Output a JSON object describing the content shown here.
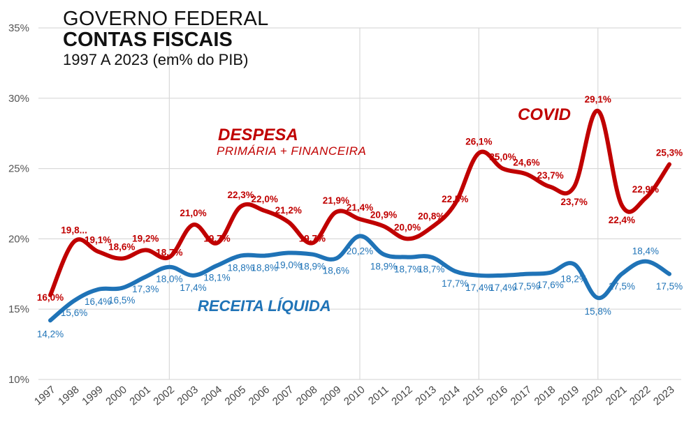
{
  "title": {
    "line1": "GOVERNO FEDERAL",
    "line2": "CONTAS FISCAIS",
    "line3": "1997 A 2023 (em% do PIB)"
  },
  "annotations": {
    "despesa_title": "DESPESA",
    "despesa_sub": "PRIMÁRIA + FINANCEIRA",
    "receita": "RECEITA LÍQUIDA",
    "covid": "COVID"
  },
  "colors": {
    "despesa": "#c00000",
    "receita": "#1f73b7",
    "grid": "#d9d9d9",
    "axis_text": "#555555"
  },
  "chart_data": {
    "type": "line",
    "title": "GOVERNO FEDERAL CONTAS FISCAIS 1997 A 2023 (em% do PIB)",
    "xlabel": "",
    "ylabel": "",
    "ylim": [
      10,
      35
    ],
    "yticks": [
      10,
      15,
      20,
      25,
      30,
      35
    ],
    "ytick_labels": [
      "10%",
      "15%",
      "20%",
      "25%",
      "30%",
      "35%"
    ],
    "vertical_gridlines_at": [
      "2002",
      "2010",
      "2015",
      "2020"
    ],
    "categories": [
      "1997",
      "1998",
      "1999",
      "2000",
      "2001",
      "2002",
      "2003",
      "2004",
      "2005",
      "2006",
      "2007",
      "2008",
      "2009",
      "2010",
      "2011",
      "2012",
      "2013",
      "2014",
      "2015",
      "2016",
      "2017",
      "2018",
      "2019",
      "2020",
      "2021",
      "2022",
      "2023"
    ],
    "series": [
      {
        "name": "DESPESA PRIMÁRIA + FINANCEIRA",
        "values": [
          16.0,
          19.8,
          19.1,
          18.6,
          19.2,
          18.7,
          21.0,
          19.7,
          22.3,
          22.0,
          21.2,
          19.7,
          21.9,
          21.4,
          20.9,
          20.0,
          20.8,
          22.5,
          26.1,
          25.0,
          24.6,
          23.7,
          23.7,
          29.1,
          22.4,
          22.9,
          25.3
        ],
        "labels": [
          "16,0%",
          "19,8...",
          "19,1%",
          "18,6%",
          "19,2%",
          "18,7%",
          "21,0%",
          "19,7%",
          "22,3%",
          "22,0%",
          "21,2%",
          "19,7%",
          "21,9%",
          "21,4%",
          "20,9%",
          "20,0%",
          "20,8%",
          "22,5%",
          "26,1%",
          "25,0%",
          "24,6%",
          "23,7%",
          "23,7%",
          "29,1%",
          "22,4%",
          "22,9%",
          "25,3%"
        ]
      },
      {
        "name": "RECEITA LÍQUIDA",
        "values": [
          14.2,
          15.6,
          16.4,
          16.5,
          17.3,
          18.0,
          17.4,
          18.1,
          18.8,
          18.8,
          19.0,
          18.9,
          18.6,
          20.2,
          18.9,
          18.7,
          18.7,
          17.7,
          17.4,
          17.4,
          17.5,
          17.6,
          18.2,
          15.8,
          17.5,
          18.4,
          17.5
        ],
        "labels": [
          "14,2%",
          "15,6%",
          "16,4%",
          "16,5%",
          "17,3%",
          "18,0%",
          "17,4%",
          "18,1%",
          "18,8%",
          "18,8%",
          "19,0%",
          "18,9%",
          "18,6%",
          "20,2%",
          "18,9%",
          "18,7%",
          "18,7%",
          "17,7%",
          "17,4%",
          "17,4%",
          "17,5%",
          "17,6%",
          "18,2%",
          "15,8%",
          "17,5%",
          "18,4%",
          "17,5%"
        ]
      }
    ]
  }
}
